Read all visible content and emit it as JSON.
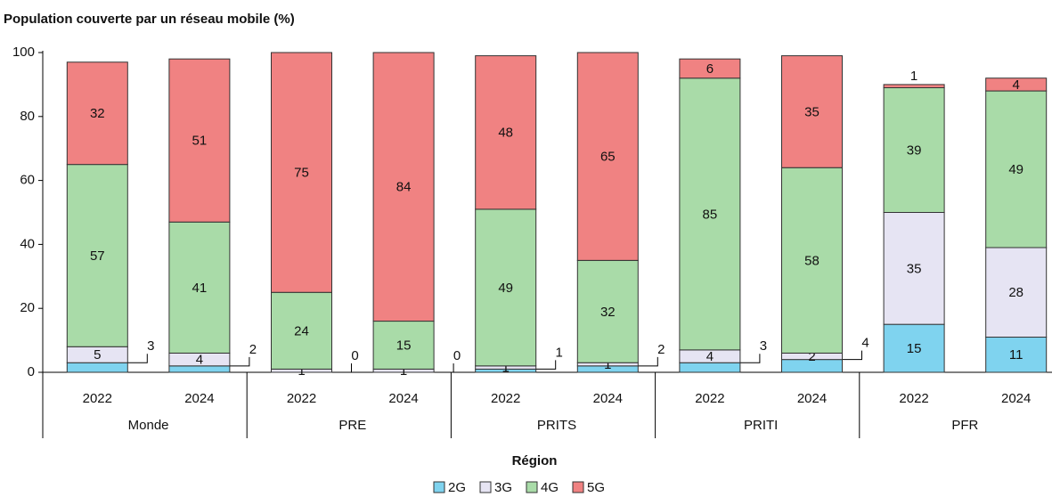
{
  "chart_data": {
    "type": "stacked_bar",
    "title": "Population couverte par un réseau mobile (%)",
    "x_label": "Région",
    "categories": [
      "2022",
      "2024",
      "2022",
      "2024",
      "2022",
      "2024",
      "2022",
      "2024",
      "2022",
      "2024"
    ],
    "groups": [
      "Monde",
      "PRE",
      "PRITS",
      "PRITI",
      "PFR"
    ],
    "series": [
      {
        "name": "2G",
        "color": "#7fd3ef",
        "values": [
          3,
          2,
          0,
          0,
          1,
          2,
          3,
          4,
          15,
          11
        ]
      },
      {
        "name": "3G",
        "color": "#e6e4f3",
        "values": [
          5,
          4,
          1,
          1,
          1,
          1,
          4,
          2,
          35,
          28
        ]
      },
      {
        "name": "4G",
        "color": "#a9dba8",
        "values": [
          57,
          41,
          24,
          15,
          49,
          32,
          85,
          58,
          39,
          49
        ]
      },
      {
        "name": "5G",
        "color": "#f08282",
        "values": [
          32,
          51,
          75,
          84,
          48,
          65,
          6,
          35,
          1,
          4
        ]
      }
    ],
    "ylim": [
      0,
      100
    ],
    "yticks": [
      0,
      20,
      40,
      60,
      80,
      100
    ],
    "grid": false,
    "legend": "bottom"
  }
}
